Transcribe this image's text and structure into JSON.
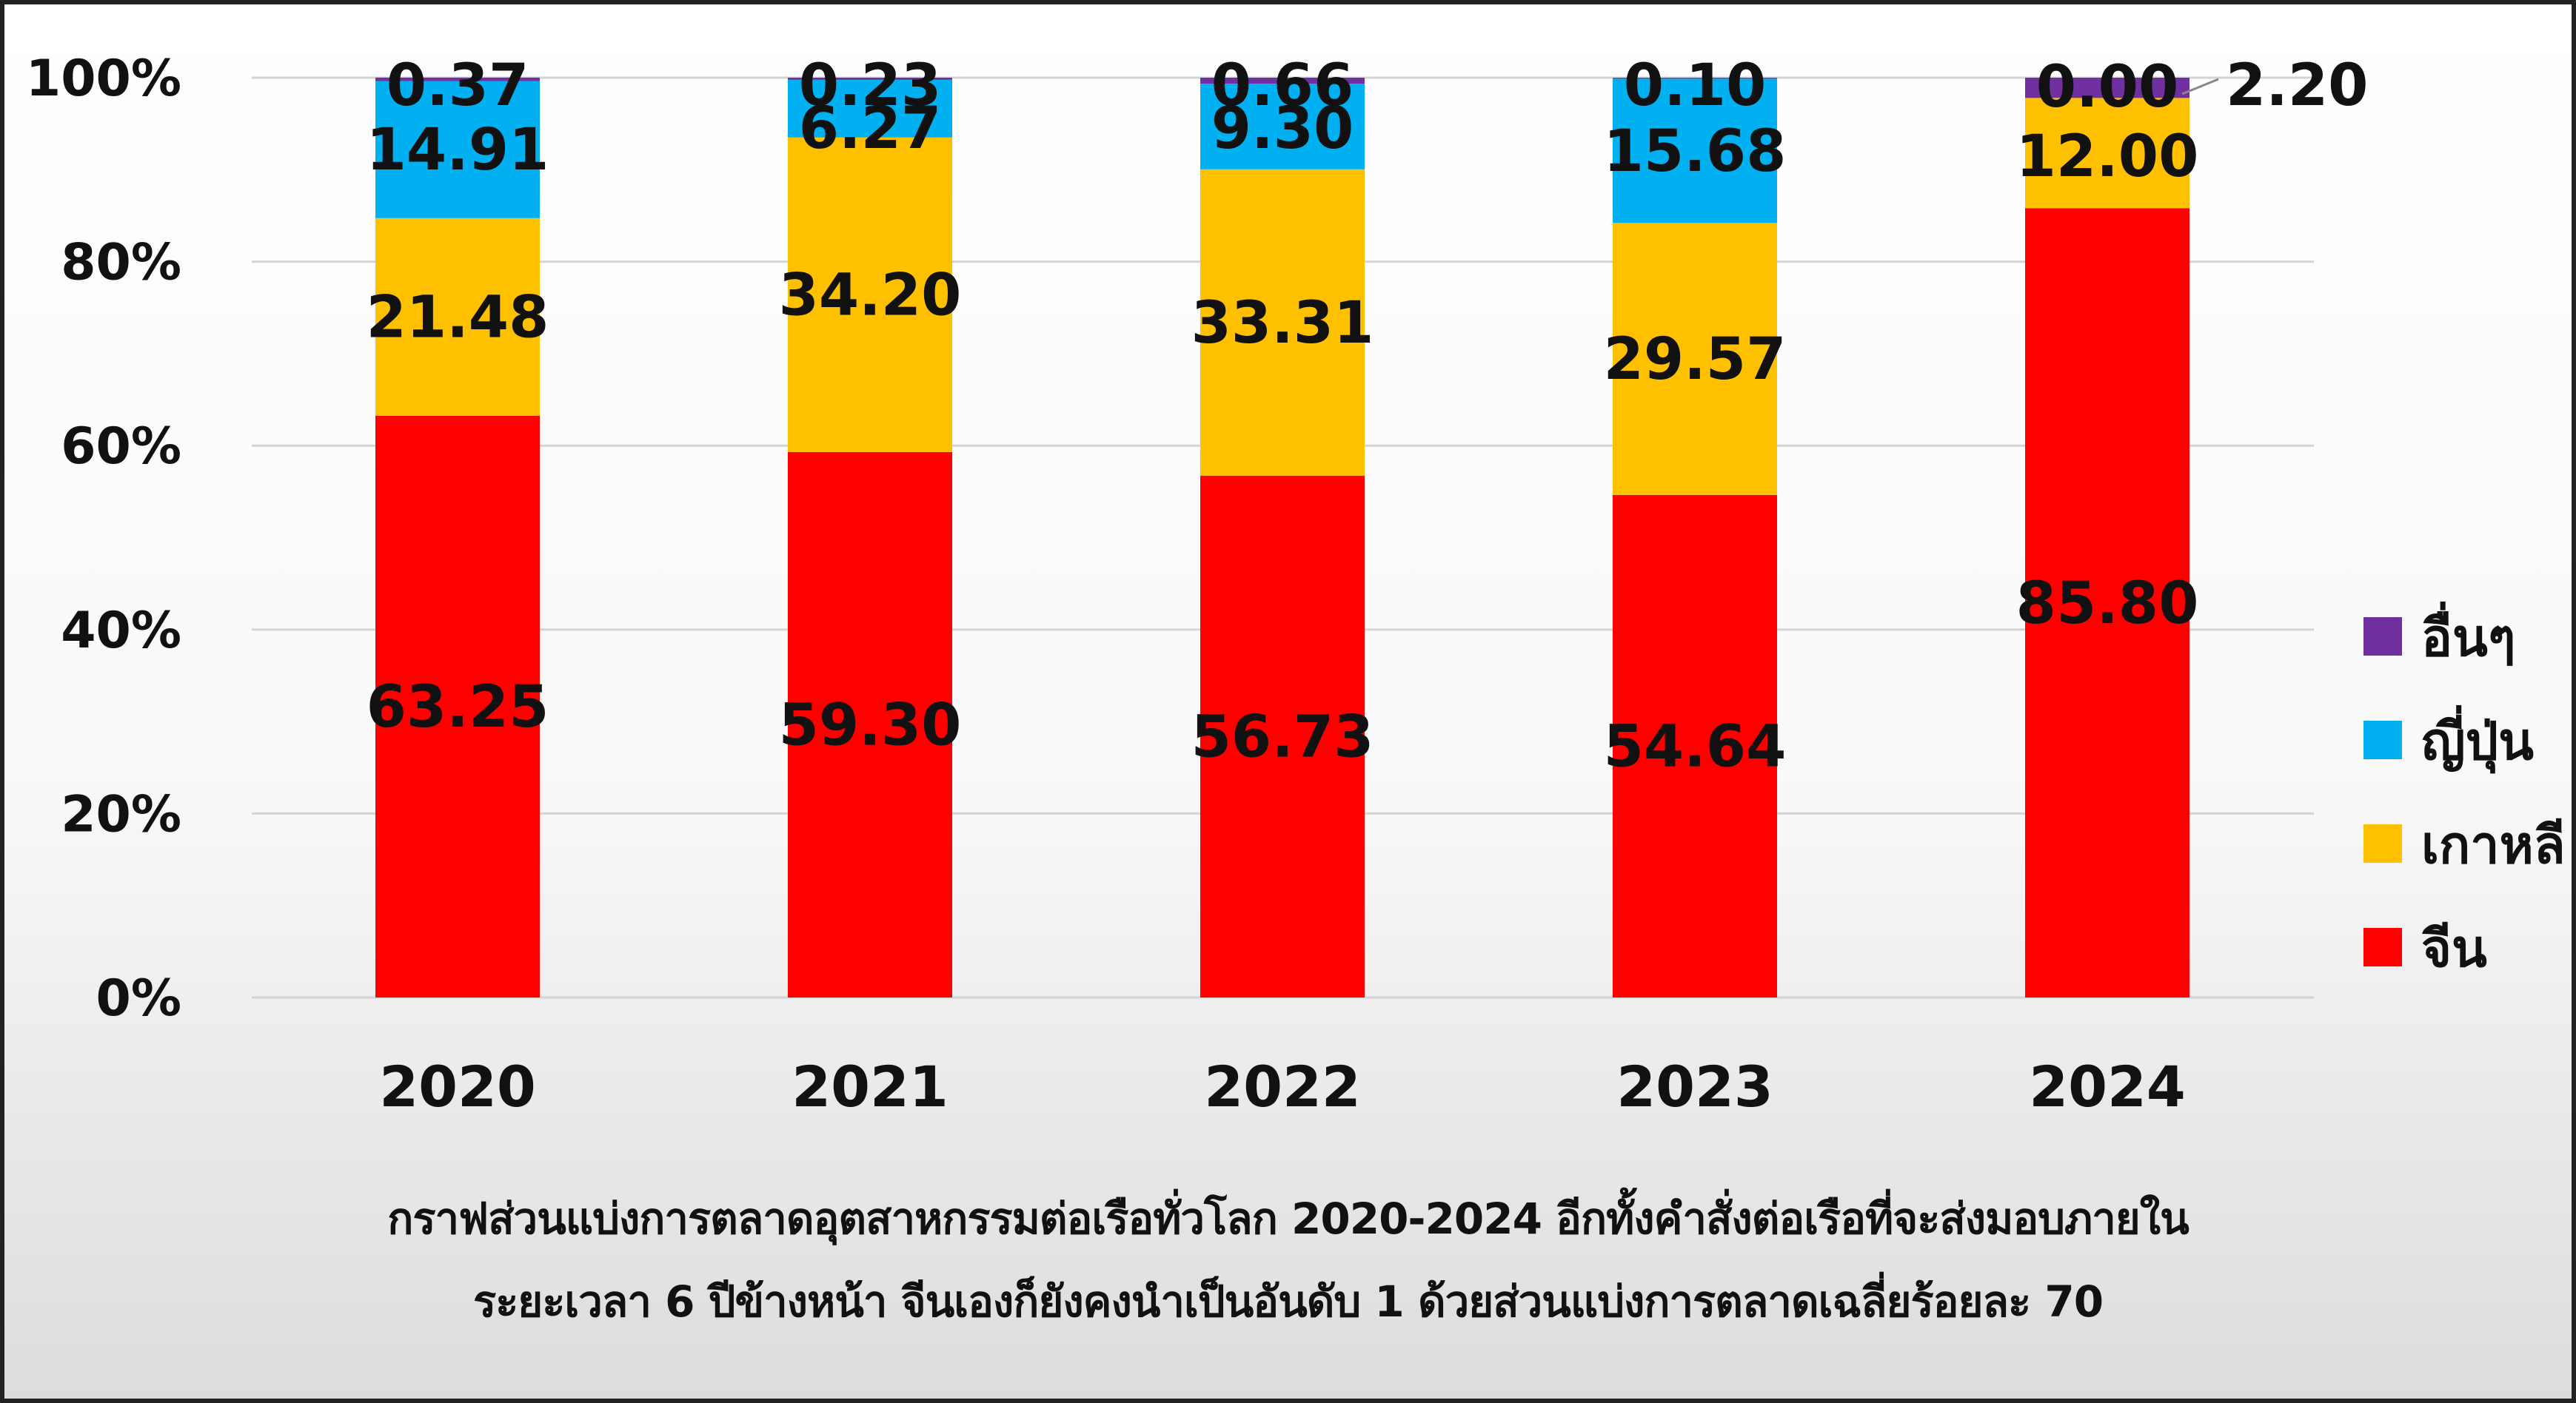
{
  "chart_data": {
    "type": "bar",
    "stacked": true,
    "categories": [
      "2020",
      "2021",
      "2022",
      "2023",
      "2024"
    ],
    "series": [
      {
        "name": "จีน",
        "color": "#ff0000",
        "values": [
          63.25,
          59.3,
          56.73,
          54.64,
          85.8
        ]
      },
      {
        "name": "เกาหลี",
        "color": "#ffc000",
        "values": [
          21.48,
          34.2,
          33.31,
          29.57,
          12.0
        ]
      },
      {
        "name": "ญี่ปุ่น",
        "color": "#00b0f0",
        "values": [
          14.91,
          6.27,
          9.3,
          15.68,
          0.0
        ]
      },
      {
        "name": "อื่นๆ",
        "color": "#7030a0",
        "values": [
          0.37,
          0.23,
          0.66,
          0.1,
          2.2
        ]
      }
    ],
    "data_labels": [
      [
        "63.25",
        "59.30",
        "56.73",
        "54.64",
        "85.80"
      ],
      [
        "21.48",
        "34.20",
        "33.31",
        "29.57",
        "12.00"
      ],
      [
        "14.91",
        "6.27",
        "9.30",
        "15.68",
        "0.00"
      ],
      [
        "0.37",
        "0.23",
        "0.66",
        "0.10",
        "2.20"
      ]
    ],
    "yticks": [
      "0%",
      "20%",
      "40%",
      "60%",
      "80%",
      "100%"
    ],
    "ylim": [
      0,
      100
    ],
    "grid": true,
    "legend_position": "right"
  },
  "caption": {
    "line1": "กราฟส่วนแบ่งการตลาดอุตสาหกรรมต่อเรือทั่วโลก 2020-2024 อีกทั้งคำสั่งต่อเรือที่จะส่งมอบภายใน",
    "line2": "ระยะเวลา 6 ปีข้างหน้า จีนเองก็ยังคงนำเป็นอันดับ 1 ด้วยส่วนแบ่งการตลาดเฉลี่ยร้อยละ 70"
  }
}
